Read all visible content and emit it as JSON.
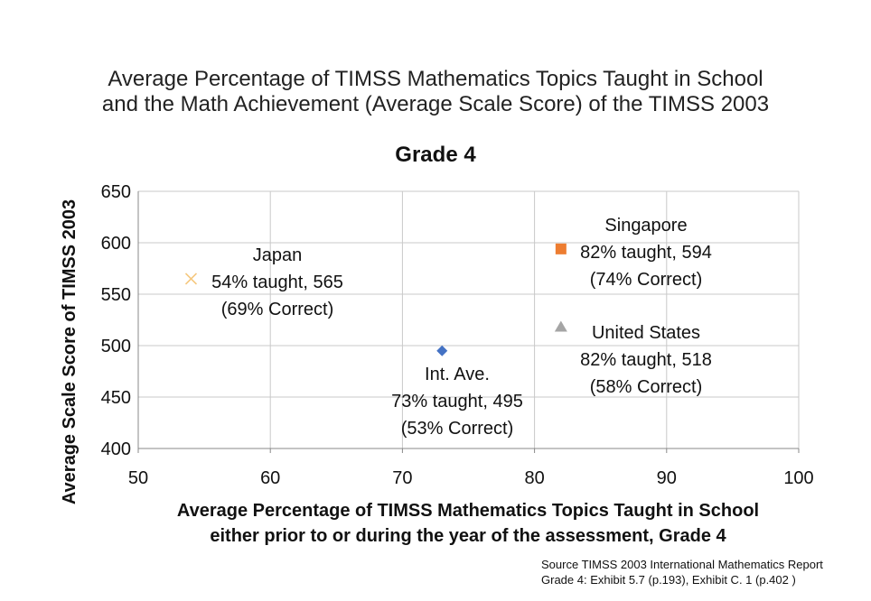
{
  "title_line1": "Average Percentage of TIMSS Mathematics Topics Taught in School",
  "title_line2": "and the Math Achievement (Average Scale Score) of the TIMSS 2003",
  "source_line1": "Source TIMSS 2003 International Mathematics Report",
  "source_line2": "Grade 4: Exhibit 5.7 (p.193), Exhibit C. 1 (p.402 )",
  "chart_data": {
    "type": "scatter",
    "title": "Grade 4",
    "xlabel_lines": [
      "Average Percentage of TIMSS Mathematics Topics Taught in School",
      "either prior to or during the year of the assessment, Grade 4"
    ],
    "ylabel": "Average Scale Score of TIMSS 2003",
    "xlim": [
      50,
      100
    ],
    "ylim": [
      400,
      650
    ],
    "xticks": [
      50,
      60,
      70,
      80,
      90,
      100
    ],
    "yticks": [
      400,
      450,
      500,
      550,
      600,
      650
    ],
    "grid": true,
    "series": [
      {
        "x": 54,
        "y": 565,
        "marker": "x",
        "color": "#F5C77E",
        "label_lines": [
          "Japan",
          "54% taught, 565",
          "(69% Correct)"
        ]
      },
      {
        "x": 73,
        "y": 495,
        "marker": "diamond",
        "color": "#4472C4",
        "label_lines": [
          "Int. Ave.",
          "73% taught, 495",
          "(53% Correct)"
        ]
      },
      {
        "x": 82,
        "y": 594,
        "marker": "square",
        "color": "#ED7D31",
        "label_lines": [
          "Singapore",
          "82% taught, 594",
          "(74% Correct)"
        ]
      },
      {
        "x": 82,
        "y": 518,
        "marker": "triangle",
        "color": "#A5A5A5",
        "label_lines": [
          "United States",
          "82% taught, 518",
          "(58% Correct)"
        ]
      }
    ]
  }
}
